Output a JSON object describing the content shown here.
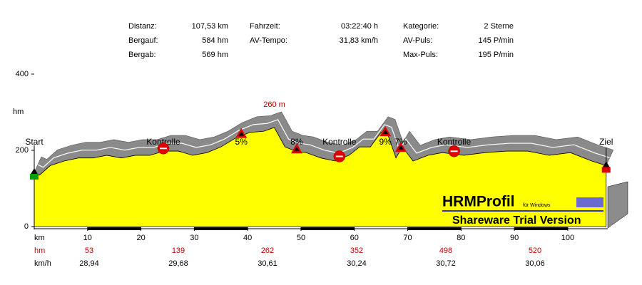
{
  "stats": [
    [
      [
        "Distanz:",
        "107,53 km"
      ],
      [
        "Bergauf:",
        "584 hm"
      ],
      [
        "Bergab:",
        "569 hm"
      ]
    ],
    [
      [
        "Fahrzeit:",
        "03:22:40 h"
      ],
      [
        "AV-Tempo:",
        "31,83 km/h"
      ]
    ],
    [
      [
        "Kategorie:",
        "2 Sterne"
      ],
      [
        "AV-Puls:",
        "145 P/min"
      ],
      [
        "Max-Puls:",
        "195 P/min"
      ]
    ]
  ],
  "chart_data": {
    "type": "area",
    "y_label": "hm",
    "x_label": "km",
    "x": [
      0,
      1,
      3,
      5.6,
      8.3,
      11,
      13.6,
      16.3,
      19,
      21.7,
      24.3,
      27,
      29.7,
      32.4,
      35,
      37.7,
      40.4,
      43,
      45,
      47,
      49,
      51,
      53.7,
      56.4,
      59,
      61,
      63,
      65,
      66.3,
      67.8,
      69,
      71,
      73.8,
      76.5,
      80.5,
      84.5,
      88.5,
      92.5,
      96.5,
      100.5,
      104.5,
      107.2
    ],
    "values": [
      142,
      135,
      160,
      172,
      180,
      180,
      187,
      180,
      187,
      187,
      198,
      198,
      187,
      194,
      209,
      232,
      247,
      250,
      260,
      209,
      198,
      194,
      180,
      172,
      187,
      209,
      209,
      247,
      240,
      180,
      209,
      172,
      187,
      194,
      187,
      194,
      198,
      198,
      187,
      194,
      172,
      160
    ],
    "color": "#ffff00",
    "max_label": "260 m",
    "xlim": [
      0,
      107.5
    ],
    "xticks": [
      10,
      20,
      30,
      40,
      50,
      60,
      70,
      80,
      90,
      100
    ],
    "ylim": [
      0,
      400
    ],
    "yticks": [
      0,
      200,
      400
    ],
    "markers": [
      {
        "label": "Start",
        "x": 0,
        "icon": "flag-green"
      },
      {
        "label": "Kontrolle",
        "x": 24.2,
        "icon": "stop"
      },
      {
        "label": "5%",
        "x": 38.8,
        "icon": "triangle"
      },
      {
        "label": "8%",
        "x": 49.2,
        "icon": "triangle"
      },
      {
        "label": "Kontrolle",
        "x": 57.2,
        "icon": "stop"
      },
      {
        "label": "9%",
        "x": 65.8,
        "icon": "triangle"
      },
      {
        "label": "7%",
        "x": 68.7,
        "icon": "triangle"
      },
      {
        "label": "Kontrolle",
        "x": 78.7,
        "icon": "stop"
      },
      {
        "label": "Ziel",
        "x": 107.2,
        "icon": "flag-red"
      }
    ],
    "rows": [
      {
        "name": "hm",
        "cells": [
          "53",
          "139",
          "262",
          "352",
          "498",
          "520"
        ]
      },
      {
        "name": "km/h",
        "cells": [
          "28,94",
          "29,68",
          "30,61",
          "30,24",
          "30,72",
          "30,06"
        ]
      }
    ]
  },
  "watermark": {
    "title": "HRMProfil",
    "sub": "für Windows",
    "note": "Shareware Trial  Version"
  }
}
